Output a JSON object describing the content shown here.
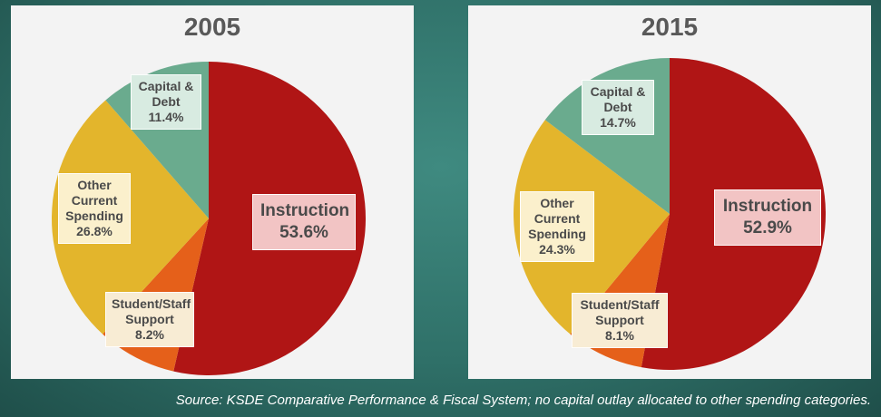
{
  "chart_data": [
    {
      "type": "pie",
      "title": "2005",
      "slices": [
        {
          "label": "Instruction",
          "value": 53.6,
          "value_text": "53.6%",
          "color": "#b01515",
          "box_color": "#f2c4c4"
        },
        {
          "label": "Student/Staff Support",
          "label_lines": [
            "Student/Staff",
            "Support"
          ],
          "value": 8.2,
          "value_text": "8.2%",
          "color": "#e5601a",
          "box_color": "#f8ecd4"
        },
        {
          "label": "Other Current Spending",
          "label_lines": [
            "Other",
            "Current",
            "Spending"
          ],
          "value": 26.8,
          "value_text": "26.8%",
          "color": "#e3b52c",
          "box_color": "#fbf0cc"
        },
        {
          "label": "Capital & Debt",
          "label_lines": [
            "Capital &",
            "Debt"
          ],
          "value": 11.4,
          "value_text": "11.4%",
          "color": "#6aab8e",
          "box_color": "#d8ebe1"
        }
      ]
    },
    {
      "type": "pie",
      "title": "2015",
      "slices": [
        {
          "label": "Instruction",
          "value": 52.9,
          "value_text": "52.9%",
          "color": "#b01515",
          "box_color": "#f2c4c4"
        },
        {
          "label": "Student/Staff Support",
          "label_lines": [
            "Student/Staff",
            "Support"
          ],
          "value": 8.1,
          "value_text": "8.1%",
          "color": "#e5601a",
          "box_color": "#f8ecd4"
        },
        {
          "label": "Other Current Spending",
          "label_lines": [
            "Other",
            "Current",
            "Spending"
          ],
          "value": 24.3,
          "value_text": "24.3%",
          "color": "#e3b52c",
          "box_color": "#fbf0cc"
        },
        {
          "label": "Capital & Debt",
          "label_lines": [
            "Capital &",
            "Debt"
          ],
          "value": 14.7,
          "value_text": "14.7%",
          "color": "#6aab8e",
          "box_color": "#d8ebe1"
        }
      ]
    }
  ],
  "footer": {
    "source": "Source: KSDE Comparative Performance & Fiscal System; no capital outlay allocated to other spending categories."
  }
}
